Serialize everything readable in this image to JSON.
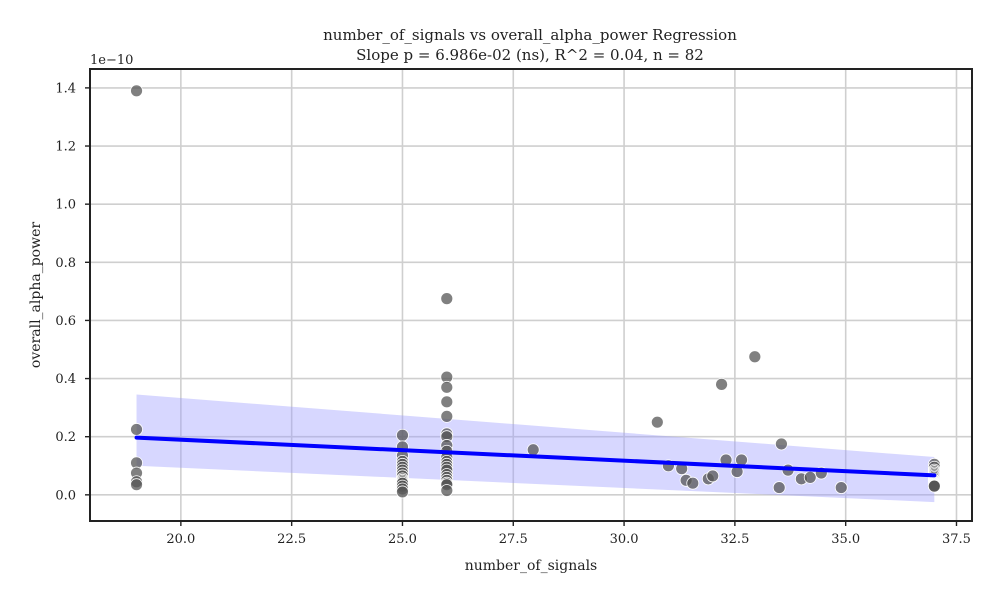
{
  "chart_data": {
    "type": "scatter",
    "title": "number_of_signals vs overall_alpha_power Regression",
    "subtitle": "Slope p = 6.986e-02 (ns), R^2 = 0.04, n = 82",
    "xlabel": "number_of_signals",
    "ylabel": "overall_alpha_power",
    "y_offset_label": "1e−10",
    "xlim": [
      17.95,
      37.85
    ],
    "ylim": [
      -0.09,
      1.465
    ],
    "xticks": [
      "20.0",
      "22.5",
      "25.0",
      "27.5",
      "30.0",
      "32.5",
      "35.0",
      "37.5"
    ],
    "yticks": [
      "0.0",
      "0.2",
      "0.4",
      "0.6",
      "0.8",
      "1.0",
      "1.2",
      "1.4"
    ],
    "grid": true,
    "point_color": "#555555",
    "line_color": "#0000ff",
    "band_color": "#9a9aff",
    "regression": {
      "x": [
        19,
        37
      ],
      "y": [
        0.197,
        0.067
      ],
      "ci_upper": [
        0.345,
        0.13
      ],
      "ci_lower": [
        0.1,
        -0.025
      ]
    },
    "points": {
      "x": [
        19,
        19,
        19,
        19,
        19,
        19,
        25,
        25,
        25,
        25,
        25,
        25,
        25,
        25,
        25,
        25,
        25,
        25,
        25,
        25,
        25,
        25,
        26,
        26,
        26,
        26,
        26,
        26,
        26,
        26,
        26,
        26,
        26,
        26,
        26,
        26,
        26,
        26,
        26,
        26,
        26,
        26,
        27.95,
        30.75,
        31.0,
        31.3,
        31.4,
        31.55,
        31.9,
        32.0,
        32.2,
        32.3,
        32.55,
        32.65,
        32.95,
        33.5,
        33.55,
        33.7,
        34.0,
        34.2,
        34.45,
        34.9,
        37,
        37,
        37,
        37,
        37,
        37,
        37,
        37,
        37,
        37,
        37,
        37,
        37,
        37,
        37,
        37,
        37,
        37,
        37,
        37
      ],
      "y": [
        1.39,
        0.225,
        0.11,
        0.075,
        0.045,
        0.035,
        0.205,
        0.165,
        0.135,
        0.115,
        0.105,
        0.095,
        0.085,
        0.075,
        0.065,
        0.055,
        0.05,
        0.045,
        0.04,
        0.03,
        0.02,
        0.01,
        0.675,
        0.405,
        0.37,
        0.32,
        0.27,
        0.21,
        0.2,
        0.17,
        0.15,
        0.13,
        0.115,
        0.105,
        0.095,
        0.085,
        0.07,
        0.06,
        0.05,
        0.04,
        0.035,
        0.015,
        0.155,
        0.25,
        0.1,
        0.09,
        0.05,
        0.04,
        0.055,
        0.065,
        0.38,
        0.12,
        0.08,
        0.12,
        0.475,
        0.025,
        0.175,
        0.085,
        0.055,
        0.06,
        0.075,
        0.025,
        0.105,
        0.095,
        0.085,
        0.08,
        0.075,
        0.07,
        0.065,
        0.06,
        0.055,
        0.05,
        0.048,
        0.045,
        0.042,
        0.04,
        0.038,
        0.036,
        0.034,
        0.032,
        0.03,
        0.03
      ]
    }
  }
}
